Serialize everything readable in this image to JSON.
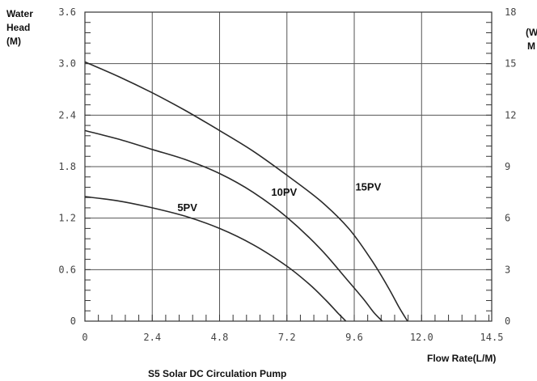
{
  "chart_data": {
    "type": "line",
    "title": "S5 Solar DC Circulation Pump",
    "xlabel": "Flow Rate(L/M)",
    "ylabel": [
      "Water",
      "Head",
      "(M)"
    ],
    "ylabel_right": [
      "(W",
      "M"
    ],
    "xlim": [
      0,
      14.5
    ],
    "ylim": [
      0,
      3.6
    ],
    "x_ticks": [
      "0",
      "2.4",
      "4.8",
      "7.2",
      "9.6",
      "12.0",
      "14.5"
    ],
    "x_tick_values": [
      0,
      2.4,
      4.8,
      7.2,
      9.6,
      12.0,
      14.5
    ],
    "y_ticks": [
      "0",
      "0.6",
      "1.2",
      "1.8",
      "2.4",
      "3.0",
      "3.6"
    ],
    "y_tick_values": [
      0,
      0.6,
      1.2,
      1.8,
      2.4,
      3.0,
      3.6
    ],
    "y2_ticks": [
      "0",
      "3",
      "6",
      "9",
      "12",
      "15",
      "18"
    ],
    "y2_tick_values": [
      0,
      3,
      6,
      9,
      12,
      15,
      18
    ],
    "grid": true,
    "series": [
      {
        "name": "5PV",
        "x": [
          0,
          1.2,
          2.4,
          3.6,
          4.8,
          6.0,
          7.2,
          8.0,
          8.6,
          9.0,
          9.3
        ],
        "y": [
          1.45,
          1.4,
          1.32,
          1.22,
          1.08,
          0.89,
          0.64,
          0.43,
          0.24,
          0.1,
          0.0
        ]
      },
      {
        "name": "10PV",
        "x": [
          0,
          1.2,
          2.4,
          3.6,
          4.8,
          6.0,
          7.2,
          8.4,
          9.3,
          9.9,
          10.3,
          10.6
        ],
        "y": [
          2.22,
          2.12,
          2.0,
          1.88,
          1.72,
          1.5,
          1.21,
          0.84,
          0.5,
          0.27,
          0.1,
          0.0
        ]
      },
      {
        "name": "15PV",
        "x": [
          0,
          1.2,
          2.4,
          3.6,
          4.8,
          6.0,
          7.2,
          8.4,
          9.4,
          10.2,
          10.8,
          11.2,
          11.5
        ],
        "y": [
          3.02,
          2.85,
          2.66,
          2.45,
          2.22,
          1.98,
          1.7,
          1.4,
          1.08,
          0.72,
          0.4,
          0.16,
          0.0
        ]
      }
    ]
  }
}
